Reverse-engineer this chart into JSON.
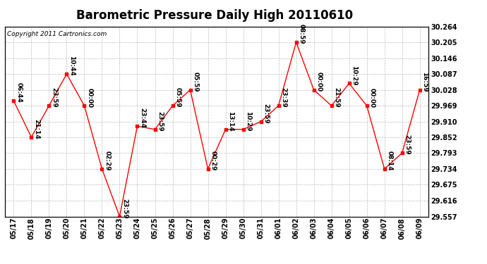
{
  "title": "Barometric Pressure Daily High 20110610",
  "copyright": "Copyright 2011 Cartronics.com",
  "background_color": "#ffffff",
  "plot_background": "#ffffff",
  "line_color": "#ff0000",
  "marker_color": "#ff0000",
  "grid_color": "#bbbbbb",
  "dates": [
    "05/17",
    "05/18",
    "05/19",
    "05/20",
    "05/21",
    "05/22",
    "05/23",
    "05/24",
    "05/25",
    "05/26",
    "05/27",
    "05/28",
    "05/29",
    "05/30",
    "05/31",
    "06/01",
    "06/02",
    "06/03",
    "06/04",
    "06/05",
    "06/06",
    "06/07",
    "06/08",
    "06/09"
  ],
  "values": [
    29.987,
    29.852,
    29.969,
    30.087,
    29.969,
    29.734,
    29.557,
    29.893,
    29.881,
    29.969,
    30.028,
    29.734,
    29.881,
    29.881,
    29.91,
    29.969,
    30.205,
    30.028,
    29.969,
    30.052,
    29.969,
    29.734,
    29.793,
    30.028
  ],
  "labels": [
    "06:44",
    "21:14",
    "23:59",
    "10:44",
    "00:00",
    "02:29",
    "23:59",
    "23:44",
    "23:59",
    "05:59",
    "05:59",
    "00:29",
    "13:14",
    "10:29",
    "23:59",
    "23:39",
    "08:59",
    "00:00",
    "21:59",
    "10:29",
    "00:00",
    "08:14",
    "23:59",
    "16:59"
  ],
  "ylim_min": 29.557,
  "ylim_max": 30.264,
  "yticks": [
    29.557,
    29.616,
    29.675,
    29.734,
    29.793,
    29.852,
    29.91,
    29.969,
    30.028,
    30.087,
    30.146,
    30.205,
    30.264
  ],
  "title_fontsize": 12,
  "label_fontsize": 6.5,
  "tick_fontsize": 7,
  "copyright_fontsize": 6.5
}
